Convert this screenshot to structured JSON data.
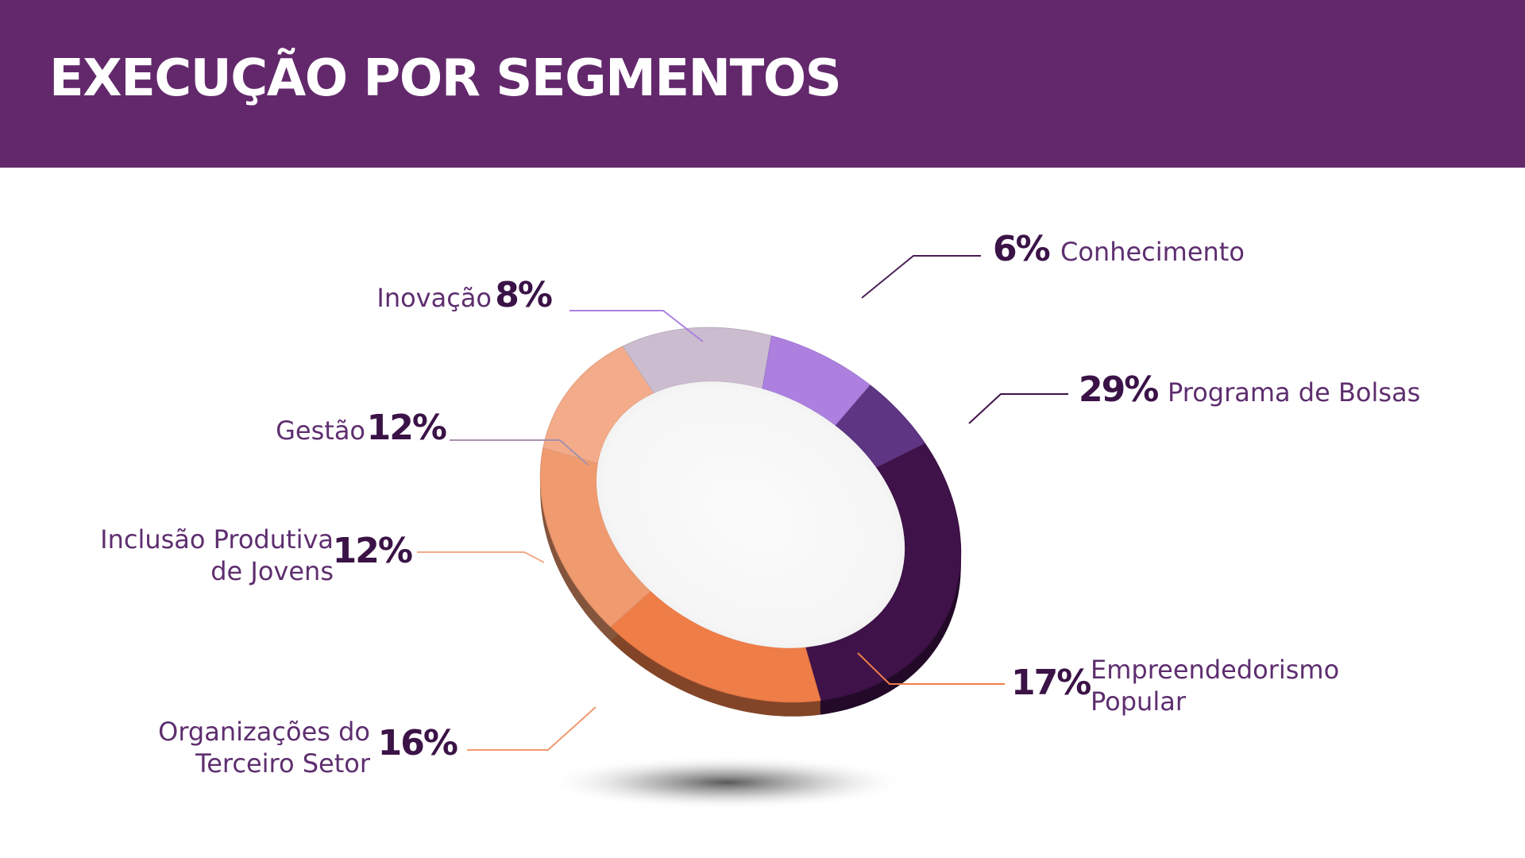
{
  "header": {
    "title": "EXECUÇÃO POR SEGMENTOS"
  },
  "chart_data": {
    "type": "pie",
    "title": "EXECUÇÃO POR SEGMENTOS",
    "style": "3d-donut",
    "legend": "none",
    "unit": "%",
    "slices": [
      {
        "label_lines": [
          "Conhecimento"
        ],
        "value": 6,
        "value_label": "6%",
        "color": "#5e3582"
      },
      {
        "label_lines": [
          "Programa de Bolsas"
        ],
        "value": 29,
        "value_label": "29%",
        "color": "#3f1249"
      },
      {
        "label_lines": [
          "Empreendedorismo",
          "Popular"
        ],
        "value": 17,
        "value_label": "17%",
        "color": "#ef7d48"
      },
      {
        "label_lines": [
          "Organizações do",
          "Terceiro Setor"
        ],
        "value": 16,
        "value_label": "16%",
        "color": "#f09a6f"
      },
      {
        "label_lines": [
          "Inclusão Produtiva",
          "de Jovens"
        ],
        "value": 12,
        "value_label": "12%",
        "color": "#f3ab89"
      },
      {
        "label_lines": [
          "Gestão"
        ],
        "value": 12,
        "value_label": "12%",
        "color": "#cbbccf"
      },
      {
        "label_lines": [
          "Inovação"
        ],
        "value": 8,
        "value_label": "8%",
        "color": "#ad80e0"
      }
    ]
  }
}
